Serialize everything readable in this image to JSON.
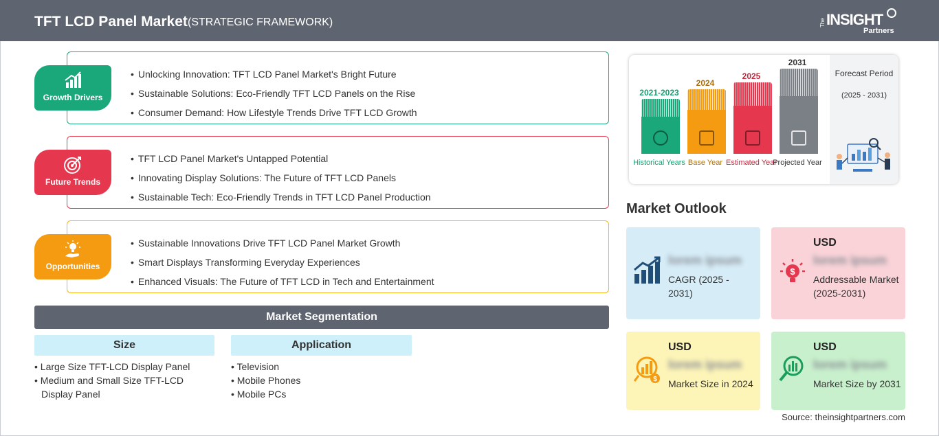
{
  "header": {
    "title": "TFT LCD Panel Market",
    "subtitle": "(STRATEGIC FRAMEWORK)",
    "logo": {
      "the": "The",
      "insight": "INSIGHT",
      "partners": "Partners"
    }
  },
  "framework": [
    {
      "label": "Growth Drivers",
      "color": "#1aa779",
      "icon": "growth-chart-icon",
      "items": [
        "Unlocking Innovation: TFT LCD Panel Market's Bright Future",
        "Sustainable Solutions: Eco-Friendly TFT LCD Panels on the Rise",
        "Consumer Demand: How Lifestyle Trends Drive TFT LCD Growth"
      ]
    },
    {
      "label": "Future Trends",
      "color": "#e5384f",
      "icon": "target-icon",
      "items": [
        "TFT LCD Panel Market's Untapped Potential",
        "Innovating Display Solutions: The Future of TFT LCD Panels",
        "Sustainable Tech: Eco-Friendly Trends in TFT LCD Panel Production"
      ]
    },
    {
      "label": "Opportunities",
      "color": "#f59b12",
      "icon": "lightbulb-hand-icon",
      "items": [
        "Sustainable Innovations Drive TFT LCD Panel Market Growth",
        "Smart Displays Transforming Everyday Experiences",
        "Enhanced Visuals: The Future of TFT LCD in Tech and Entertainment"
      ]
    }
  ],
  "segmentation": {
    "title": "Market Segmentation",
    "columns": [
      {
        "head": "Size",
        "items": [
          "Large Size TFT-LCD Display Panel",
          "Medium and Small Size TFT-LCD Display Panel"
        ]
      },
      {
        "head": "Application",
        "items": [
          "Television",
          "Mobile Phones",
          "Mobile PCs"
        ]
      }
    ]
  },
  "timeline": {
    "periods": [
      {
        "year": "2021-2023",
        "caption": "Historical Years",
        "color": "#1aa779",
        "year_color": "#1a9e6f",
        "icon": "history-icon"
      },
      {
        "year": "2024",
        "caption": "Base Year",
        "color": "#f59b12",
        "year_color": "#a8700f",
        "icon": "calendar-icon"
      },
      {
        "year": "2025",
        "caption": "Estimated Year",
        "color": "#e5384f",
        "year_color": "#c0293f",
        "icon": "estimate-icon"
      },
      {
        "year": "2031",
        "caption": "Projected Year",
        "color": "#7b7f86",
        "year_color": "#333333",
        "icon": "projection-icon"
      }
    ],
    "forecast_title": "Forecast Period",
    "forecast_period": "(2025 - 2031)"
  },
  "outlook": {
    "title": "Market Outlook",
    "boxes": [
      {
        "usd": "",
        "value": "lorem ipsum",
        "desc": "CAGR (2025 - 2031)",
        "bg": "#d6ecf7",
        "icon": "bar-growth-icon"
      },
      {
        "usd": "USD",
        "value": "lorem ipsum",
        "desc": "Addressable Market (2025-2031)",
        "bg": "#f9d3d8",
        "icon": "dollar-bulb-icon"
      },
      {
        "usd": "USD",
        "value": "lorem ipsum",
        "desc": "Market Size in 2024",
        "bg": "#fdf4b8",
        "icon": "money-chart-icon"
      },
      {
        "usd": "USD",
        "value": "lorem ipsum",
        "desc": "Market Size by 2031",
        "bg": "#c9f0cd",
        "icon": "magnifier-chart-icon"
      }
    ]
  },
  "source": "Source: theinsightpartners.com"
}
